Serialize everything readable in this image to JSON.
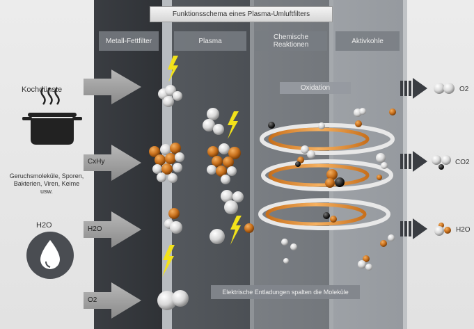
{
  "title": "Funktionsschema eines Plasma-Umluftfilters",
  "columns": [
    {
      "label": "Metall-Fettfilter"
    },
    {
      "label": "Plasma"
    },
    {
      "label": "Chemische Reaktionen"
    },
    {
      "label": "Aktivkohle"
    }
  ],
  "oxidation_label": "Oxidation",
  "discharge_label": "Elektrische Entladungen spalten die Moleküle",
  "inputs": {
    "kochduenste": "Kochdünste",
    "cxhy": "CxHy",
    "geruch": "Geruchsmoleküle, Sporen, Bakterien, Viren, Keime usw.",
    "h2o_label": "H2O",
    "h2o_arrow": "H2O",
    "o2_arrow": "O2"
  },
  "outputs": {
    "o2": "O2",
    "co2": "CO2",
    "h2o": "H2O"
  },
  "colors": {
    "orange": "#c8701c",
    "white_sphere": "#e8e8e8",
    "dark_sphere": "#2a2a2a",
    "lightning": "#f2e21a",
    "arrow": "#9a9a9a"
  }
}
